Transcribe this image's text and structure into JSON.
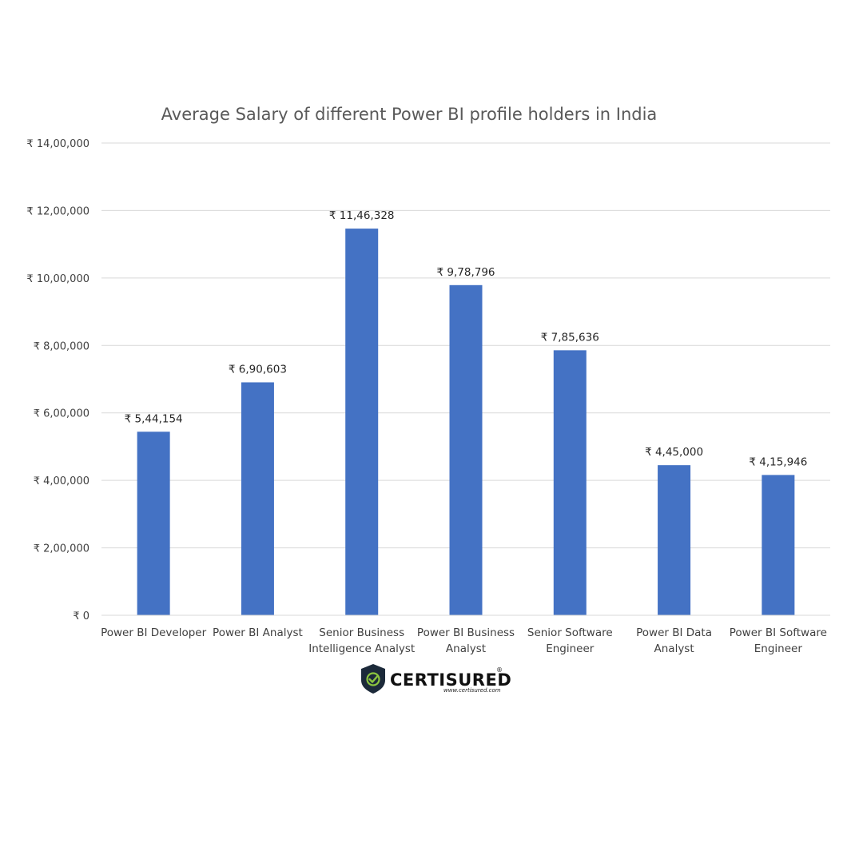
{
  "chart_data": {
    "type": "bar",
    "title": "Average Salary of different Power BI profile holders in India",
    "xlabel": "",
    "ylabel": "",
    "categories": [
      [
        "Power BI Developer"
      ],
      [
        "Power BI Analyst"
      ],
      [
        "Senior Business",
        "Intelligence Analyst"
      ],
      [
        "Power BI Business",
        "Analyst"
      ],
      [
        "Senior Software",
        "Engineer"
      ],
      [
        "Power BI Data",
        "Analyst"
      ],
      [
        "Power BI Software",
        "Engineer"
      ]
    ],
    "values": [
      544154,
      690603,
      1146328,
      978796,
      785636,
      445000,
      415946
    ],
    "data_labels": [
      "₹ 5,44,154",
      "₹ 6,90,603",
      "₹ 11,46,328",
      "₹ 9,78,796",
      "₹ 7,85,636",
      "₹ 4,45,000",
      "₹ 4,15,946"
    ],
    "ylim": [
      0,
      1400000
    ],
    "yticks": [
      0,
      200000,
      400000,
      600000,
      800000,
      1000000,
      1200000,
      1400000
    ],
    "ytick_labels": [
      "₹ 0",
      "₹ 2,00,000",
      "₹ 4,00,000",
      "₹ 6,00,000",
      "₹ 8,00,000",
      "₹ 10,00,000",
      "₹ 12,00,000",
      "₹ 14,00,000"
    ],
    "grid": true,
    "legend": "none",
    "bar_color": "#4472C4"
  },
  "logo": {
    "name": "CERTISURED",
    "registered_mark": "®",
    "url": "www.certisured.com",
    "shield_color": "#1c2a3a",
    "check_color": "#8cc63f"
  }
}
